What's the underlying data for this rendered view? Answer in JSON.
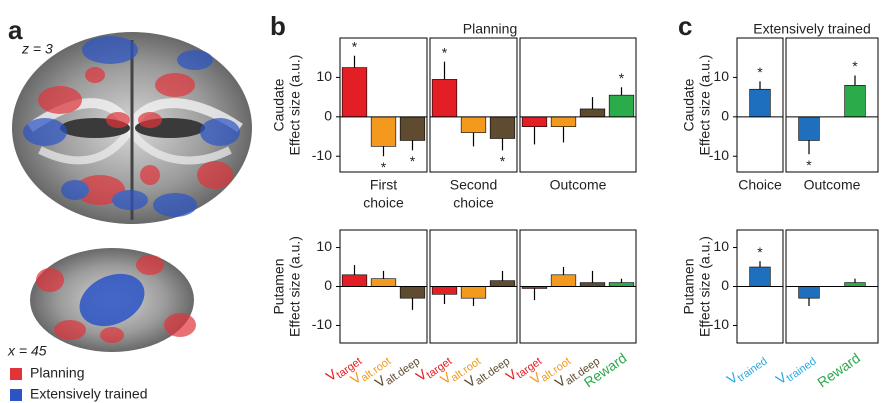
{
  "figure": {
    "a": {
      "label": "a",
      "z_label": "z = 3",
      "x_label": "x = 45",
      "legend": [
        {
          "name": "Planning",
          "color": "#e0343a"
        },
        {
          "name": "Extensively trained",
          "color": "#2b55c6"
        }
      ]
    },
    "b": {
      "label": "b",
      "title": "Planning"
    },
    "c": {
      "label": "c",
      "title": "Extensively trained"
    }
  },
  "chart_data": [
    {
      "type": "bar",
      "ylabel": [
        "Caudate",
        "Effect size (a.u.)"
      ],
      "ylim": [
        -14,
        20
      ],
      "yticks": [
        -10,
        0,
        10
      ],
      "groups": [
        {
          "label": [
            "First",
            "choice"
          ],
          "colors": [
            "#e31e24",
            "#f39a1e",
            "#5e4b30"
          ],
          "values": [
            12.5,
            -7.5,
            -6
          ],
          "errors": [
            3,
            2.5,
            2.5
          ],
          "stars": [
            "*",
            "*",
            "*"
          ]
        },
        {
          "label": [
            "Second",
            "choice"
          ],
          "colors": [
            "#e31e24",
            "#f39a1e",
            "#5e4b30"
          ],
          "values": [
            9.5,
            -4,
            -5.5
          ],
          "errors": [
            4.5,
            3.5,
            3
          ],
          "stars": [
            "*",
            null,
            "*"
          ]
        },
        {
          "label": [
            "Outcome"
          ],
          "colors": [
            "#e31e24",
            "#f39a1e",
            "#5e4b30",
            "#2bab4a"
          ],
          "values": [
            -2.5,
            -2.5,
            2,
            5.5
          ],
          "errors": [
            4.5,
            4,
            3,
            2
          ],
          "stars": [
            null,
            null,
            null,
            "*"
          ]
        }
      ]
    },
    {
      "type": "bar",
      "ylabel": [
        "Putamen",
        "Effect size (a.u.)"
      ],
      "ylim": [
        -14.5,
        14.5
      ],
      "yticks": [
        -10,
        0,
        10
      ],
      "groups": [
        {
          "colors": [
            "#e31e24",
            "#f39a1e",
            "#5e4b30"
          ],
          "values": [
            3,
            2,
            -3
          ],
          "errors": [
            2.5,
            2,
            3
          ],
          "categories": [
            {
              "symbol": "V",
              "subscript": "target",
              "color": "#e31e24"
            },
            {
              "symbol": "V",
              "subscript": "alt.root",
              "color": "#f39a1e"
            },
            {
              "symbol": "V",
              "subscript": "alt.deep",
              "color": "#5e4b30"
            }
          ]
        },
        {
          "colors": [
            "#e31e24",
            "#f39a1e",
            "#5e4b30"
          ],
          "values": [
            -2,
            -3,
            1.5
          ],
          "errors": [
            2.5,
            2,
            2.5
          ],
          "categories": [
            {
              "symbol": "V",
              "subscript": "target",
              "color": "#e31e24"
            },
            {
              "symbol": "V",
              "subscript": "alt.root",
              "color": "#f39a1e"
            },
            {
              "symbol": "V",
              "subscript": "alt.deep",
              "color": "#5e4b30"
            }
          ]
        },
        {
          "colors": [
            "#e31e24",
            "#f39a1e",
            "#5e4b30",
            "#2bab4a"
          ],
          "values": [
            -0.5,
            3,
            1,
            1
          ],
          "errors": [
            3,
            2,
            3,
            1
          ],
          "categories": [
            {
              "symbol": "V",
              "subscript": "target",
              "color": "#e31e24"
            },
            {
              "symbol": "V",
              "subscript": "alt.root",
              "color": "#f39a1e"
            },
            {
              "symbol": "V",
              "subscript": "alt.deep",
              "color": "#5e4b30"
            },
            {
              "symbol": "Reward",
              "color": "#2bab4a"
            }
          ]
        }
      ]
    },
    {
      "type": "bar",
      "ylabel": [
        "Caudate",
        "Effect size (a.u.)"
      ],
      "ylim": [
        -14,
        20
      ],
      "yticks": [
        -10,
        0,
        10
      ],
      "groups": [
        {
          "label": [
            "Choice"
          ],
          "colors": [
            "#1f6fbf"
          ],
          "values": [
            7
          ],
          "errors": [
            2
          ],
          "stars": [
            "*"
          ]
        },
        {
          "label": [
            "Outcome"
          ],
          "colors": [
            "#1f6fbf",
            "#2bab4a"
          ],
          "values": [
            -6,
            8
          ],
          "errors": [
            3.5,
            2.5
          ],
          "stars": [
            "*",
            "*"
          ]
        }
      ]
    },
    {
      "type": "bar",
      "ylabel": [
        "Putamen",
        "Effect size (a.u.)"
      ],
      "ylim": [
        -14.5,
        14.5
      ],
      "yticks": [
        -10,
        0,
        10
      ],
      "groups": [
        {
          "colors": [
            "#1f6fbf"
          ],
          "values": [
            5
          ],
          "errors": [
            1.5
          ],
          "stars": [
            "*"
          ],
          "categories": [
            {
              "symbol": "V",
              "subscript": "trained",
              "color": "#29abe2"
            }
          ]
        },
        {
          "colors": [
            "#1f6fbf",
            "#2bab4a"
          ],
          "values": [
            -3,
            1
          ],
          "errors": [
            2,
            1
          ],
          "categories": [
            {
              "symbol": "V",
              "subscript": "trained",
              "color": "#29abe2"
            },
            {
              "symbol": "Reward",
              "color": "#2bab4a"
            }
          ]
        }
      ]
    }
  ]
}
